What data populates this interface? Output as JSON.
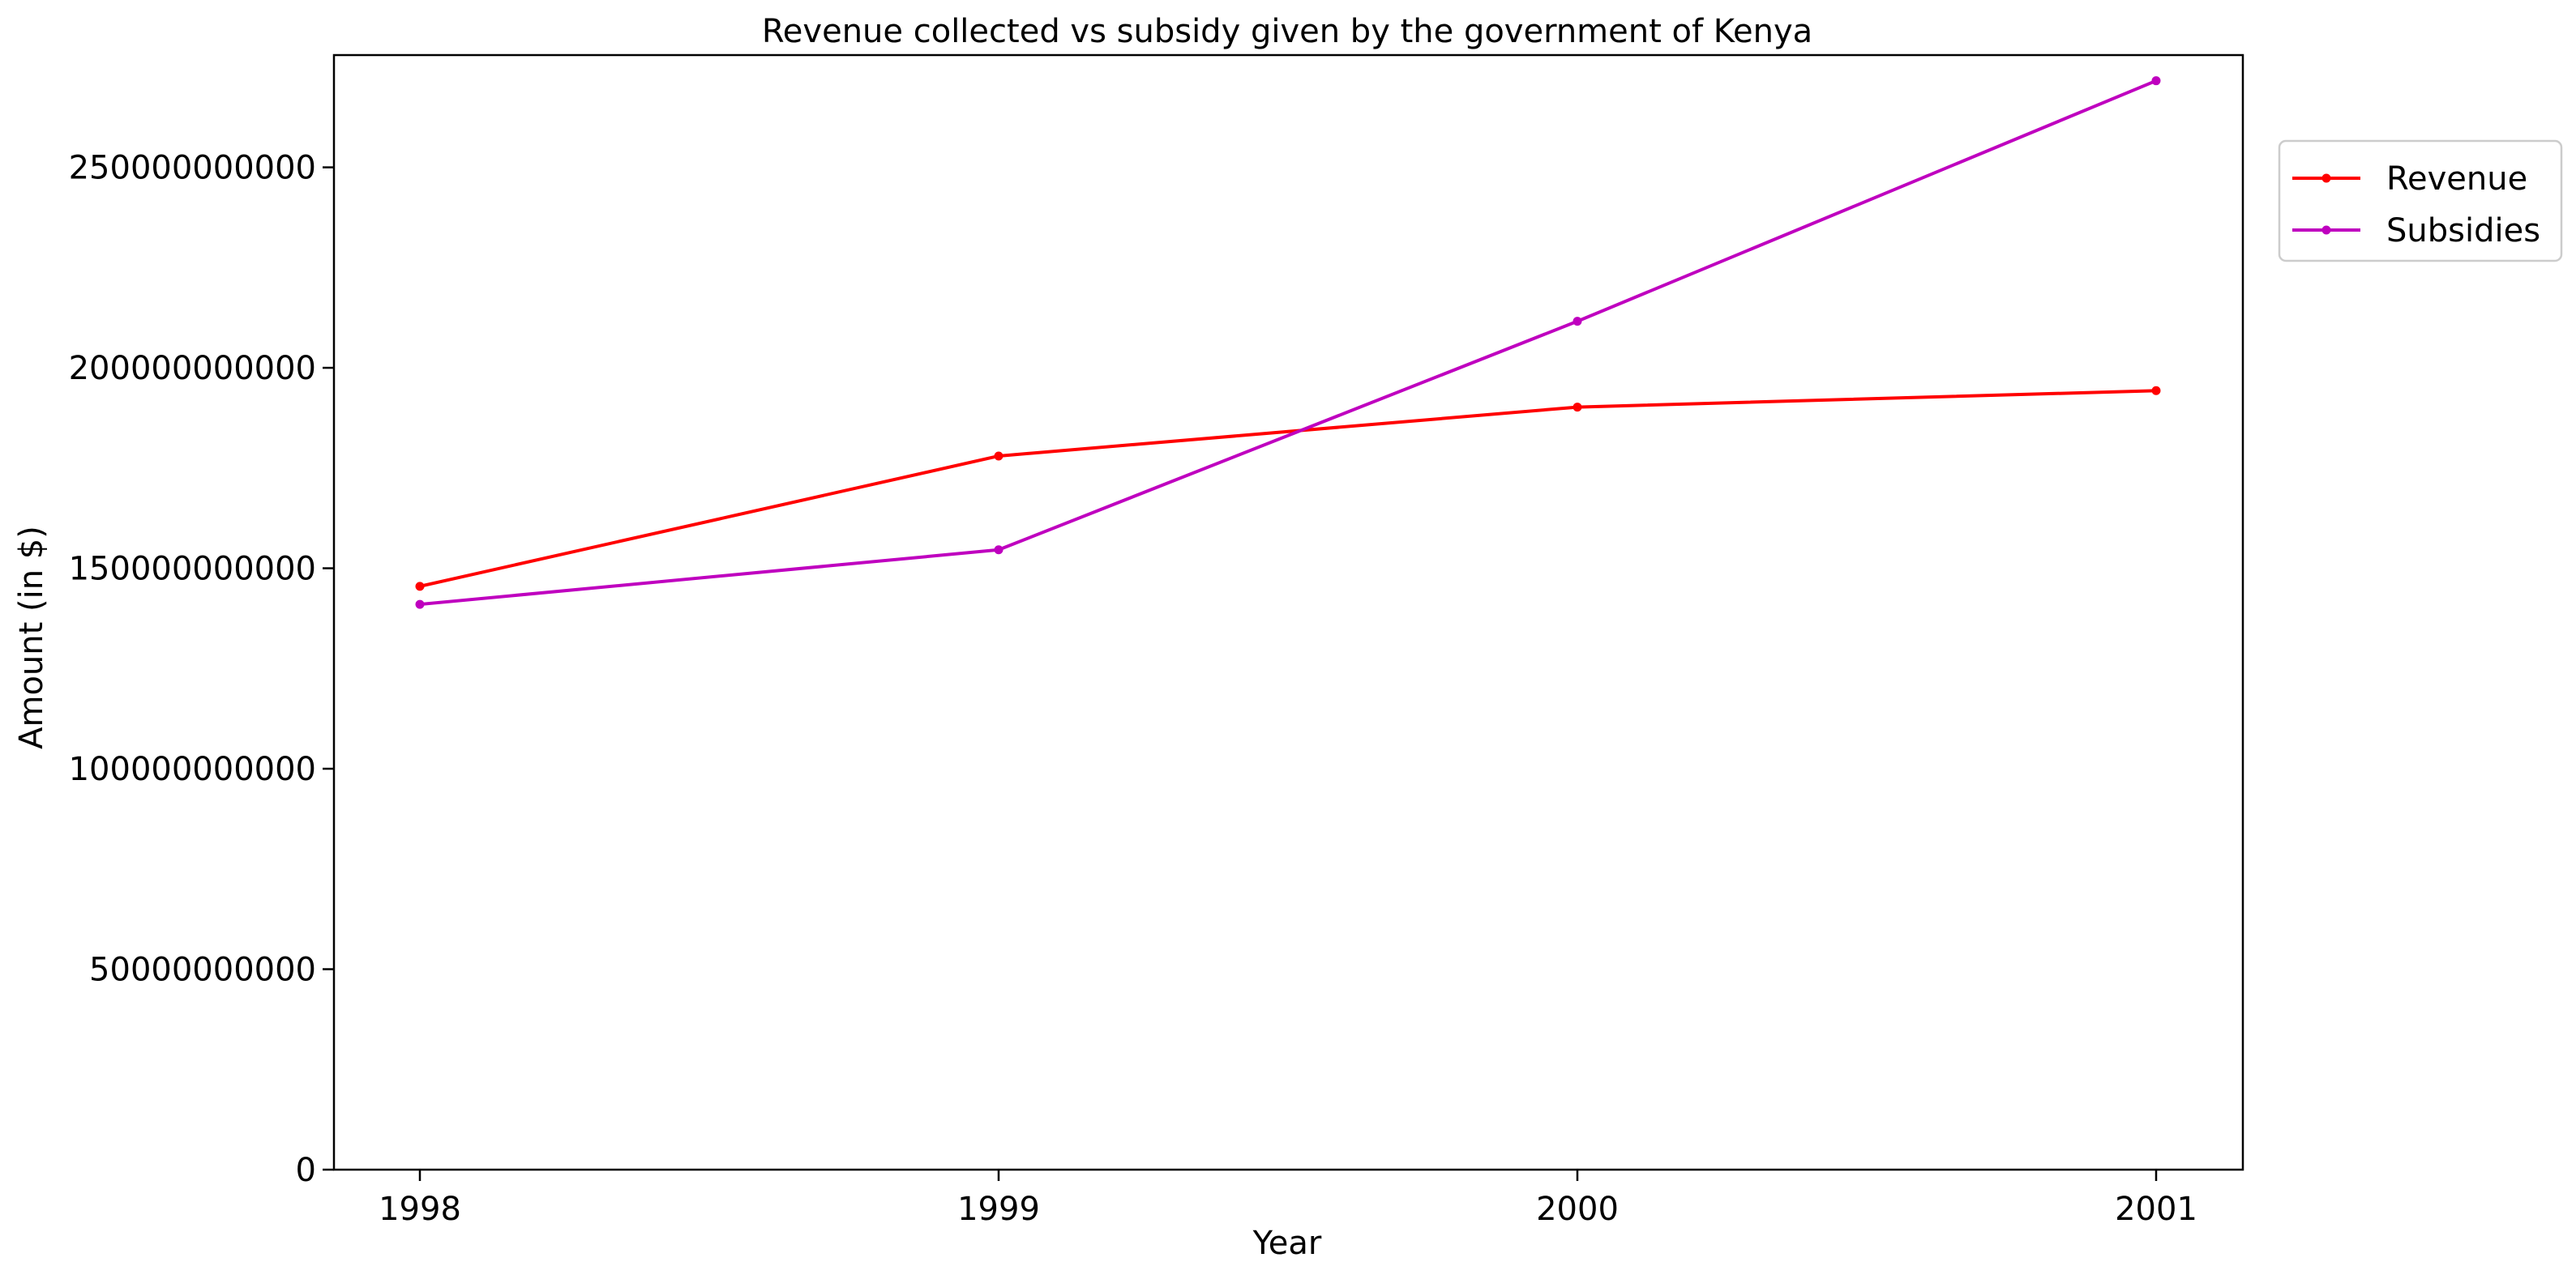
{
  "chart_data": {
    "type": "line",
    "title": "Revenue collected vs subsidy given by the government of Kenya",
    "xlabel": "Year",
    "ylabel": "Amount (in $)",
    "categories": [
      "1998",
      "1999",
      "2000",
      "2001"
    ],
    "x_tick_labels": [
      "1998",
      "1999",
      "2000",
      "2001"
    ],
    "ylim": [
      0,
      278000000000
    ],
    "y_ticks": [
      0,
      50000000000,
      100000000000,
      150000000000,
      200000000000,
      250000000000
    ],
    "y_tick_labels": [
      "0",
      "50000000000",
      "100000000000",
      "150000000000",
      "200000000000",
      "250000000000"
    ],
    "grid": false,
    "legend_position": "outside-top-right",
    "series": [
      {
        "name": "Revenue",
        "color": "#ff0000",
        "marker": "point",
        "values": [
          145500000000,
          178000000000,
          190200000000,
          194300000000
        ]
      },
      {
        "name": "Subsidies",
        "color": "#bf00bf",
        "marker": "point",
        "values": [
          141000000000,
          154600000000,
          211600000000,
          271600000000
        ]
      }
    ]
  }
}
